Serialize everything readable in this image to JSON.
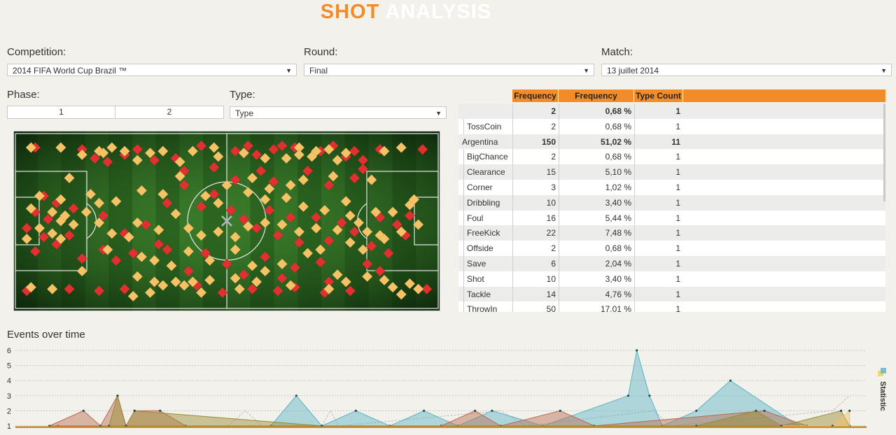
{
  "header": {
    "title_part1": "SHOT",
    "title_part2": "ANALYSIS"
  },
  "filters": {
    "competition_label": "Competition:",
    "competition_value": "2014 FIFA World Cup Brazil ™",
    "round_label": "Round:",
    "round_value": "Final",
    "match_label": "Match:",
    "match_value": "13 juillet 2014",
    "phase_label": "Phase:",
    "phase_options": [
      "1",
      "2"
    ],
    "type_label": "Type:",
    "type_value": "Type"
  },
  "table": {
    "headers": [
      "Frequency",
      "Frequency Percent",
      "Type Count"
    ],
    "rows": [
      {
        "label": "",
        "group": "",
        "freq": "2",
        "pct": "0,68 %",
        "count": "1",
        "bold": true
      },
      {
        "label": "TossCoin",
        "group": "",
        "freq": "2",
        "pct": "0,68 %",
        "count": "1",
        "bold": false
      },
      {
        "label": "",
        "group": "Argentina",
        "freq": "150",
        "pct": "51,02 %",
        "count": "11",
        "bold": true
      },
      {
        "label": "BigChance",
        "group": "",
        "freq": "2",
        "pct": "0,68 %",
        "count": "1",
        "bold": false
      },
      {
        "label": "Clearance",
        "group": "",
        "freq": "15",
        "pct": "5,10 %",
        "count": "1",
        "bold": false
      },
      {
        "label": "Corner",
        "group": "",
        "freq": "3",
        "pct": "1,02 %",
        "count": "1",
        "bold": false
      },
      {
        "label": "Dribbling",
        "group": "",
        "freq": "10",
        "pct": "3,40 %",
        "count": "1",
        "bold": false
      },
      {
        "label": "Foul",
        "group": "",
        "freq": "16",
        "pct": "5,44 %",
        "count": "1",
        "bold": false
      },
      {
        "label": "FreeKick",
        "group": "",
        "freq": "22",
        "pct": "7,48 %",
        "count": "1",
        "bold": false
      },
      {
        "label": "Offside",
        "group": "",
        "freq": "2",
        "pct": "0,68 %",
        "count": "1",
        "bold": false
      },
      {
        "label": "Save",
        "group": "",
        "freq": "6",
        "pct": "2,04 %",
        "count": "1",
        "bold": false
      },
      {
        "label": "Shot",
        "group": "",
        "freq": "10",
        "pct": "3,40 %",
        "count": "1",
        "bold": false
      },
      {
        "label": "Tackle",
        "group": "",
        "freq": "14",
        "pct": "4,76 %",
        "count": "1",
        "bold": false
      },
      {
        "label": "ThrowIn",
        "group": "",
        "freq": "50",
        "pct": "17,01 %",
        "count": "1",
        "bold": false
      }
    ]
  },
  "chart_section": {
    "title": "Events over time",
    "legend_label": "Statistic"
  },
  "colors": {
    "accent": "#f28c28",
    "team_red": "#e03030",
    "team_yellow": "#f5c266",
    "teal": "#5ab4c4",
    "brown": "#b86a50",
    "olive": "#9a8a30"
  },
  "chart_data": {
    "type": "area",
    "ylim": [
      1,
      6
    ],
    "yticks": [
      1,
      2,
      3,
      4,
      5,
      6
    ],
    "series": [
      {
        "color": "#5ab4c4",
        "points": [
          [
            0.05,
            1
          ],
          [
            0.3,
            1
          ],
          [
            0.33,
            3
          ],
          [
            0.36,
            1
          ],
          [
            0.4,
            2
          ],
          [
            0.44,
            1
          ],
          [
            0.48,
            2
          ],
          [
            0.52,
            1
          ],
          [
            0.56,
            2
          ],
          [
            0.62,
            1
          ],
          [
            0.72,
            3
          ],
          [
            0.73,
            6
          ],
          [
            0.745,
            3
          ],
          [
            0.76,
            1
          ],
          [
            0.8,
            2
          ],
          [
            0.84,
            4
          ],
          [
            0.92,
            1
          ],
          [
            0.98,
            1
          ]
        ]
      },
      {
        "color": "#b86a50",
        "points": [
          [
            0.04,
            1
          ],
          [
            0.08,
            2
          ],
          [
            0.1,
            1
          ],
          [
            0.12,
            3
          ],
          [
            0.13,
            1
          ],
          [
            0.14,
            2
          ],
          [
            0.17,
            2
          ],
          [
            0.2,
            1
          ],
          [
            0.5,
            1
          ],
          [
            0.54,
            2
          ],
          [
            0.57,
            1
          ],
          [
            0.64,
            2
          ],
          [
            0.68,
            1
          ],
          [
            0.88,
            2
          ],
          [
            0.93,
            1
          ]
        ]
      },
      {
        "color": "#9a8a30",
        "points": [
          [
            0.11,
            1
          ],
          [
            0.12,
            3
          ],
          [
            0.13,
            1
          ],
          [
            0.14,
            2
          ],
          [
            0.36,
            1
          ],
          [
            0.8,
            1
          ],
          [
            0.87,
            2
          ],
          [
            0.9,
            1
          ],
          [
            0.97,
            2
          ],
          [
            0.98,
            1
          ]
        ]
      },
      {
        "color": "#f5c266",
        "points": [
          [
            0.9,
            1
          ],
          [
            0.96,
            1
          ],
          [
            0.98,
            2
          ]
        ]
      }
    ],
    "ghost": [
      [
        0.25,
        1
      ],
      [
        0.27,
        2
      ],
      [
        0.29,
        1
      ],
      [
        0.36,
        1
      ],
      [
        0.37,
        2
      ],
      [
        0.38,
        1
      ],
      [
        0.57,
        2
      ],
      [
        0.6,
        1
      ],
      [
        0.75,
        2
      ],
      [
        0.77,
        1
      ],
      [
        0.96,
        2
      ],
      [
        0.98,
        3
      ]
    ]
  },
  "pitch_data": {
    "red": [
      [
        0.05,
        0.09
      ],
      [
        0.16,
        0.1
      ],
      [
        0.19,
        0.15
      ],
      [
        0.22,
        0.17
      ],
      [
        0.26,
        0.13
      ],
      [
        0.29,
        0.1
      ],
      [
        0.33,
        0.16
      ],
      [
        0.38,
        0.15
      ],
      [
        0.44,
        0.08
      ],
      [
        0.52,
        0.11
      ],
      [
        0.55,
        0.08
      ],
      [
        0.57,
        0.13
      ],
      [
        0.61,
        0.1
      ],
      [
        0.63,
        0.08
      ],
      [
        0.66,
        0.09
      ],
      [
        0.72,
        0.11
      ],
      [
        0.75,
        0.08
      ],
      [
        0.78,
        0.14
      ],
      [
        0.8,
        0.11
      ],
      [
        0.82,
        0.16
      ],
      [
        0.86,
        0.1
      ],
      [
        0.96,
        0.1
      ],
      [
        0.4,
        0.22
      ],
      [
        0.47,
        0.2
      ],
      [
        0.52,
        0.27
      ],
      [
        0.58,
        0.22
      ],
      [
        0.61,
        0.28
      ],
      [
        0.69,
        0.22
      ],
      [
        0.74,
        0.3
      ],
      [
        0.8,
        0.26
      ],
      [
        0.82,
        0.21
      ],
      [
        0.07,
        0.36
      ],
      [
        0.1,
        0.4
      ],
      [
        0.05,
        0.45
      ],
      [
        0.08,
        0.49
      ],
      [
        0.14,
        0.43
      ],
      [
        0.03,
        0.54
      ],
      [
        0.07,
        0.59
      ],
      [
        0.13,
        0.58
      ],
      [
        0.1,
        0.63
      ],
      [
        0.05,
        0.67
      ],
      [
        0.16,
        0.71
      ],
      [
        0.21,
        0.47
      ],
      [
        0.26,
        0.57
      ],
      [
        0.31,
        0.52
      ],
      [
        0.36,
        0.4
      ],
      [
        0.4,
        0.3
      ],
      [
        0.44,
        0.42
      ],
      [
        0.47,
        0.35
      ],
      [
        0.51,
        0.44
      ],
      [
        0.54,
        0.49
      ],
      [
        0.57,
        0.54
      ],
      [
        0.6,
        0.44
      ],
      [
        0.62,
        0.58
      ],
      [
        0.65,
        0.48
      ],
      [
        0.67,
        0.62
      ],
      [
        0.71,
        0.48
      ],
      [
        0.74,
        0.61
      ],
      [
        0.77,
        0.51
      ],
      [
        0.8,
        0.56
      ],
      [
        0.84,
        0.64
      ],
      [
        0.86,
        0.48
      ],
      [
        0.9,
        0.52
      ],
      [
        0.93,
        0.47
      ],
      [
        0.92,
        0.58
      ],
      [
        0.88,
        0.68
      ],
      [
        0.21,
        0.66
      ],
      [
        0.24,
        0.72
      ],
      [
        0.28,
        0.68
      ],
      [
        0.34,
        0.63
      ],
      [
        0.36,
        0.66
      ],
      [
        0.41,
        0.78
      ],
      [
        0.45,
        0.68
      ],
      [
        0.5,
        0.74
      ],
      [
        0.54,
        0.8
      ],
      [
        0.59,
        0.7
      ],
      [
        0.63,
        0.82
      ],
      [
        0.66,
        0.76
      ],
      [
        0.72,
        0.73
      ],
      [
        0.74,
        0.84
      ],
      [
        0.83,
        0.74
      ],
      [
        0.86,
        0.78
      ],
      [
        0.03,
        0.89
      ],
      [
        0.13,
        0.88
      ],
      [
        0.2,
        0.89
      ],
      [
        0.26,
        0.88
      ],
      [
        0.33,
        0.84
      ],
      [
        0.43,
        0.86
      ],
      [
        0.49,
        0.9
      ],
      [
        0.56,
        0.88
      ],
      [
        0.62,
        0.89
      ],
      [
        0.66,
        0.87
      ],
      [
        0.73,
        0.9
      ],
      [
        0.79,
        0.89
      ],
      [
        0.97,
        0.88
      ]
    ],
    "yellow": [
      [
        0.04,
        0.09
      ],
      [
        0.11,
        0.09
      ],
      [
        0.16,
        0.13
      ],
      [
        0.2,
        0.11
      ],
      [
        0.23,
        0.09
      ],
      [
        0.26,
        0.11
      ],
      [
        0.32,
        0.12
      ],
      [
        0.35,
        0.11
      ],
      [
        0.42,
        0.11
      ],
      [
        0.47,
        0.09
      ],
      [
        0.54,
        0.12
      ],
      [
        0.67,
        0.09
      ],
      [
        0.71,
        0.11
      ],
      [
        0.74,
        0.1
      ],
      [
        0.78,
        0.12
      ],
      [
        0.87,
        0.11
      ],
      [
        0.91,
        0.09
      ],
      [
        0.21,
        0.12
      ],
      [
        0.29,
        0.16
      ],
      [
        0.39,
        0.17
      ],
      [
        0.48,
        0.14
      ],
      [
        0.59,
        0.15
      ],
      [
        0.64,
        0.15
      ],
      [
        0.67,
        0.13
      ],
      [
        0.7,
        0.14
      ],
      [
        0.76,
        0.16
      ],
      [
        0.13,
        0.26
      ],
      [
        0.39,
        0.25
      ],
      [
        0.5,
        0.3
      ],
      [
        0.56,
        0.26
      ],
      [
        0.6,
        0.32
      ],
      [
        0.65,
        0.3
      ],
      [
        0.68,
        0.27
      ],
      [
        0.75,
        0.25
      ],
      [
        0.84,
        0.27
      ],
      [
        0.06,
        0.36
      ],
      [
        0.11,
        0.38
      ],
      [
        0.04,
        0.43
      ],
      [
        0.09,
        0.45
      ],
      [
        0.06,
        0.54
      ],
      [
        0.09,
        0.57
      ],
      [
        0.11,
        0.5
      ],
      [
        0.14,
        0.52
      ],
      [
        0.11,
        0.6
      ],
      [
        0.03,
        0.6
      ],
      [
        0.12,
        0.47
      ],
      [
        0.18,
        0.35
      ],
      [
        0.2,
        0.4
      ],
      [
        0.24,
        0.39
      ],
      [
        0.3,
        0.33
      ],
      [
        0.35,
        0.35
      ],
      [
        0.45,
        0.36
      ],
      [
        0.48,
        0.4
      ],
      [
        0.55,
        0.34
      ],
      [
        0.59,
        0.38
      ],
      [
        0.64,
        0.37
      ],
      [
        0.68,
        0.42
      ],
      [
        0.73,
        0.44
      ],
      [
        0.78,
        0.39
      ],
      [
        0.79,
        0.47
      ],
      [
        0.81,
        0.51
      ],
      [
        0.85,
        0.45
      ],
      [
        0.89,
        0.45
      ],
      [
        0.93,
        0.41
      ],
      [
        0.94,
        0.38
      ],
      [
        0.95,
        0.52
      ],
      [
        0.91,
        0.56
      ],
      [
        0.86,
        0.58
      ],
      [
        0.83,
        0.56
      ],
      [
        0.76,
        0.55
      ],
      [
        0.17,
        0.45
      ],
      [
        0.2,
        0.51
      ],
      [
        0.23,
        0.57
      ],
      [
        0.27,
        0.59
      ],
      [
        0.29,
        0.51
      ],
      [
        0.34,
        0.55
      ],
      [
        0.38,
        0.46
      ],
      [
        0.41,
        0.54
      ],
      [
        0.44,
        0.58
      ],
      [
        0.48,
        0.56
      ],
      [
        0.52,
        0.59
      ],
      [
        0.55,
        0.53
      ],
      [
        0.59,
        0.51
      ],
      [
        0.63,
        0.52
      ],
      [
        0.67,
        0.56
      ],
      [
        0.71,
        0.54
      ],
      [
        0.79,
        0.62
      ],
      [
        0.82,
        0.66
      ],
      [
        0.87,
        0.6
      ],
      [
        0.22,
        0.66
      ],
      [
        0.3,
        0.7
      ],
      [
        0.33,
        0.72
      ],
      [
        0.37,
        0.75
      ],
      [
        0.41,
        0.67
      ],
      [
        0.46,
        0.72
      ],
      [
        0.52,
        0.66
      ],
      [
        0.56,
        0.75
      ],
      [
        0.59,
        0.78
      ],
      [
        0.63,
        0.74
      ],
      [
        0.69,
        0.68
      ],
      [
        0.72,
        0.66
      ],
      [
        0.76,
        0.8
      ],
      [
        0.83,
        0.81
      ],
      [
        0.87,
        0.83
      ],
      [
        0.16,
        0.78
      ],
      [
        0.29,
        0.81
      ],
      [
        0.33,
        0.84
      ],
      [
        0.35,
        0.86
      ],
      [
        0.38,
        0.84
      ],
      [
        0.4,
        0.86
      ],
      [
        0.42,
        0.84
      ],
      [
        0.46,
        0.83
      ],
      [
        0.52,
        0.82
      ],
      [
        0.57,
        0.84
      ],
      [
        0.65,
        0.86
      ],
      [
        0.78,
        0.84
      ],
      [
        0.89,
        0.87
      ],
      [
        0.93,
        0.85
      ],
      [
        0.95,
        0.88
      ],
      [
        0.04,
        0.87
      ],
      [
        0.09,
        0.88
      ],
      [
        0.28,
        0.92
      ],
      [
        0.32,
        0.9
      ],
      [
        0.44,
        0.9
      ],
      [
        0.53,
        0.88
      ],
      [
        0.74,
        0.88
      ],
      [
        0.91,
        0.91
      ]
    ]
  }
}
